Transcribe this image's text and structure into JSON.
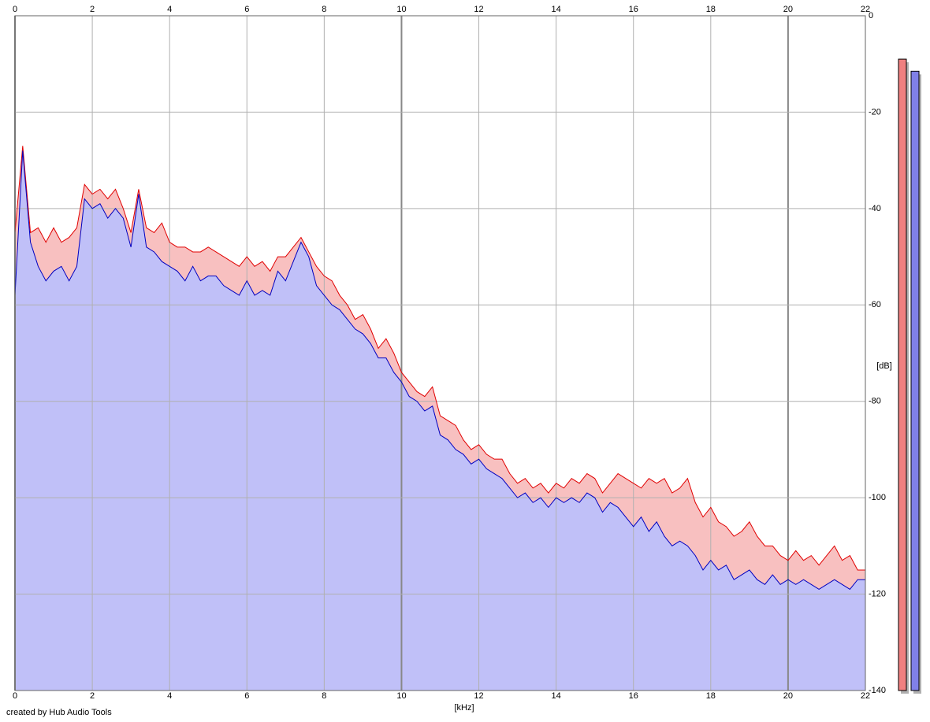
{
  "chart_data": {
    "type": "spectrum",
    "xlabel": "[kHz]",
    "ylabel": "[dB]",
    "credit": "created by Hub Audio Tools",
    "xlim": [
      0,
      22
    ],
    "xticks": [
      0,
      2,
      4,
      6,
      8,
      10,
      12,
      14,
      16,
      18,
      20,
      22
    ],
    "ylim": [
      -140,
      0
    ],
    "yticks": [
      0,
      -20,
      -40,
      -60,
      -80,
      -100,
      -120,
      -140
    ],
    "grid": true,
    "x": [
      0,
      0.2,
      0.4,
      0.6,
      0.8,
      1,
      1.2,
      1.4,
      1.6,
      1.8,
      2,
      2.2,
      2.4,
      2.6,
      2.8,
      3,
      3.2,
      3.4,
      3.6,
      3.8,
      4,
      4.2,
      4.4,
      4.6,
      4.8,
      5,
      5.2,
      5.4,
      5.6,
      5.8,
      6,
      6.2,
      6.4,
      6.6,
      6.8,
      7,
      7.2,
      7.4,
      7.6,
      7.8,
      8,
      8.2,
      8.4,
      8.6,
      8.8,
      9,
      9.2,
      9.4,
      9.6,
      9.8,
      10,
      10.2,
      10.4,
      10.6,
      10.8,
      11,
      11.2,
      11.4,
      11.6,
      11.8,
      12,
      12.2,
      12.4,
      12.6,
      12.8,
      13,
      13.2,
      13.4,
      13.6,
      13.8,
      14,
      14.2,
      14.4,
      14.6,
      14.8,
      15,
      15.2,
      15.4,
      15.6,
      15.8,
      16,
      16.2,
      16.4,
      16.6,
      16.8,
      17,
      17.2,
      17.4,
      17.6,
      17.8,
      18,
      18.2,
      18.4,
      18.6,
      18.8,
      19,
      19.2,
      19.4,
      19.6,
      19.8,
      20,
      20.2,
      20.4,
      20.6,
      20.8,
      21,
      21.2,
      21.4,
      21.6,
      21.8,
      22
    ],
    "series": [
      {
        "color": "#e00000",
        "fill": "#f8c0c0",
        "values": [
          -45,
          -27,
          -45,
          -44,
          -47,
          -44,
          -47,
          -46,
          -44,
          -35,
          -37,
          -36,
          -38,
          -36,
          -40,
          -45,
          -36,
          -44,
          -45,
          -43,
          -47,
          -48,
          -48,
          -49,
          -49,
          -48,
          -49,
          -50,
          -51,
          -52,
          -50,
          -52,
          -51,
          -53,
          -50,
          -50,
          -48,
          -46,
          -49,
          -52,
          -54,
          -55,
          -58,
          -60,
          -63,
          -62,
          -65,
          -69,
          -67,
          -70,
          -74,
          -76,
          -78,
          -79,
          -77,
          -83,
          -84,
          -85,
          -88,
          -90,
          -89,
          -91,
          -92,
          -92,
          -95,
          -97,
          -96,
          -98,
          -97,
          -99,
          -97,
          -98,
          -96,
          -97,
          -95,
          -96,
          -99,
          -97,
          -95,
          -96,
          -97,
          -98,
          -96,
          -97,
          -96,
          -99,
          -98,
          -96,
          -101,
          -104,
          -102,
          -105,
          -106,
          -108,
          -107,
          -105,
          -108,
          -110,
          -110,
          -112,
          -113,
          -111,
          -113,
          -112,
          -114,
          -112,
          -110,
          -113,
          -112,
          -115,
          -115
        ]
      },
      {
        "color": "#0000c0",
        "fill": "#c0c0f8",
        "values": [
          -58,
          -28,
          -47,
          -52,
          -55,
          -53,
          -52,
          -55,
          -52,
          -38,
          -40,
          -39,
          -42,
          -40,
          -42,
          -48,
          -37,
          -48,
          -49,
          -51,
          -52,
          -53,
          -55,
          -52,
          -55,
          -54,
          -54,
          -56,
          -57,
          -58,
          -55,
          -58,
          -57,
          -58,
          -53,
          -55,
          -51,
          -47,
          -50,
          -56,
          -58,
          -60,
          -61,
          -63,
          -65,
          -66,
          -68,
          -71,
          -71,
          -74,
          -76,
          -79,
          -80,
          -82,
          -81,
          -87,
          -88,
          -90,
          -91,
          -93,
          -92,
          -94,
          -95,
          -96,
          -98,
          -100,
          -99,
          -101,
          -100,
          -102,
          -100,
          -101,
          -100,
          -101,
          -99,
          -100,
          -103,
          -101,
          -102,
          -104,
          -106,
          -104,
          -107,
          -105,
          -108,
          -110,
          -109,
          -110,
          -112,
          -115,
          -113,
          -115,
          -114,
          -117,
          -116,
          -115,
          -117,
          -118,
          -116,
          -118,
          -117,
          -118,
          -117,
          -118,
          -119,
          -118,
          -117,
          -118,
          -119,
          -117,
          -117
        ]
      }
    ],
    "meters": [
      {
        "color": "#f08080",
        "value": -9
      },
      {
        "color": "#8080e8",
        "value": -11.5
      }
    ]
  }
}
